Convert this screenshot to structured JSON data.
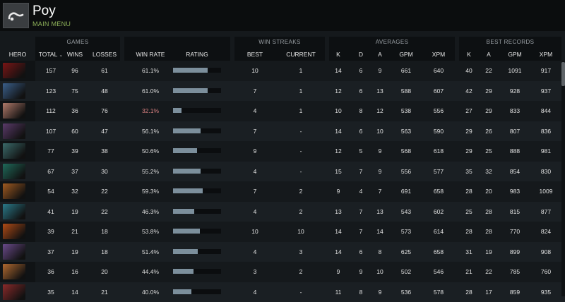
{
  "header": {
    "player_name": "Poy",
    "main_menu_label": "MAIN MENU",
    "logo_icon": "dota-logo-icon"
  },
  "groups": {
    "games": "GAMES",
    "win_streaks": "WIN STREAKS",
    "averages": "AVERAGES",
    "best_records": "BEST RECORDS"
  },
  "columns": {
    "hero": "HERO",
    "total": "TOTAL",
    "wins": "WINS",
    "losses": "LOSSES",
    "win_rate": "WIN RATE",
    "rating": "RATING",
    "best": "BEST",
    "current": "CURRENT",
    "k": "K",
    "d": "D",
    "a": "A",
    "gpm": "GPM",
    "xpm": "XPM",
    "best_k": "K",
    "best_a": "A",
    "best_gpm": "GPM",
    "best_xpm": "XPM"
  },
  "colors": {
    "accent_green": "#8fb35a",
    "low_winrate": "#d98080",
    "rating_bar": "#7c8f9c"
  },
  "rows": [
    {
      "hero_icon": "hero-portrait-icon",
      "hero_color": "#7a1515",
      "total": "157",
      "wins": "96",
      "losses": "61",
      "win_rate": "61.1%",
      "rating": 0.72,
      "best": "10",
      "current": "1",
      "k": "14",
      "d": "6",
      "a": "9",
      "gpm": "661",
      "xpm": "640",
      "best_k": "40",
      "best_a": "22",
      "best_gpm": "1091",
      "best_xpm": "917"
    },
    {
      "hero_icon": "hero-portrait-icon",
      "hero_color": "#3a5f8a",
      "total": "123",
      "wins": "75",
      "losses": "48",
      "win_rate": "61.0%",
      "rating": 0.72,
      "best": "7",
      "current": "1",
      "k": "12",
      "d": "6",
      "a": "13",
      "gpm": "588",
      "xpm": "607",
      "best_k": "42",
      "best_a": "29",
      "best_gpm": "928",
      "best_xpm": "937"
    },
    {
      "hero_icon": "hero-portrait-icon",
      "hero_color": "#b07a6a",
      "total": "112",
      "wins": "36",
      "losses": "76",
      "win_rate": "32.1%",
      "rating": 0.17,
      "best": "4",
      "current": "1",
      "k": "10",
      "d": "8",
      "a": "12",
      "gpm": "538",
      "xpm": "556",
      "best_k": "27",
      "best_a": "29",
      "best_gpm": "833",
      "best_xpm": "844"
    },
    {
      "hero_icon": "hero-portrait-icon",
      "hero_color": "#5a3a6a",
      "total": "107",
      "wins": "60",
      "losses": "47",
      "win_rate": "56.1%",
      "rating": 0.58,
      "best": "7",
      "current": "-",
      "k": "14",
      "d": "6",
      "a": "10",
      "gpm": "563",
      "xpm": "590",
      "best_k": "29",
      "best_a": "26",
      "best_gpm": "807",
      "best_xpm": "836"
    },
    {
      "hero_icon": "hero-portrait-icon",
      "hero_color": "#3a6a6a",
      "total": "77",
      "wins": "39",
      "losses": "38",
      "win_rate": "50.6%",
      "rating": 0.5,
      "best": "9",
      "current": "-",
      "k": "12",
      "d": "5",
      "a": "9",
      "gpm": "568",
      "xpm": "618",
      "best_k": "29",
      "best_a": "25",
      "best_gpm": "888",
      "best_xpm": "981"
    },
    {
      "hero_icon": "hero-portrait-icon",
      "hero_color": "#1f6a5a",
      "total": "67",
      "wins": "37",
      "losses": "30",
      "win_rate": "55.2%",
      "rating": 0.58,
      "best": "4",
      "current": "-",
      "k": "15",
      "d": "7",
      "a": "9",
      "gpm": "556",
      "xpm": "577",
      "best_k": "35",
      "best_a": "32",
      "best_gpm": "854",
      "best_xpm": "830"
    },
    {
      "hero_icon": "hero-portrait-icon",
      "hero_color": "#a05a20",
      "total": "54",
      "wins": "32",
      "losses": "22",
      "win_rate": "59.3%",
      "rating": 0.62,
      "best": "7",
      "current": "2",
      "k": "9",
      "d": "4",
      "a": "7",
      "gpm": "691",
      "xpm": "658",
      "best_k": "28",
      "best_a": "20",
      "best_gpm": "983",
      "best_xpm": "1009"
    },
    {
      "hero_icon": "hero-portrait-icon",
      "hero_color": "#2a7a8a",
      "total": "41",
      "wins": "19",
      "losses": "22",
      "win_rate": "46.3%",
      "rating": 0.44,
      "best": "4",
      "current": "2",
      "k": "13",
      "d": "7",
      "a": "13",
      "gpm": "543",
      "xpm": "602",
      "best_k": "25",
      "best_a": "28",
      "best_gpm": "815",
      "best_xpm": "877"
    },
    {
      "hero_icon": "hero-portrait-icon",
      "hero_color": "#b04a15",
      "total": "39",
      "wins": "21",
      "losses": "18",
      "win_rate": "53.8%",
      "rating": 0.56,
      "best": "10",
      "current": "10",
      "k": "14",
      "d": "7",
      "a": "14",
      "gpm": "573",
      "xpm": "614",
      "best_k": "28",
      "best_a": "28",
      "best_gpm": "770",
      "best_xpm": "824"
    },
    {
      "hero_icon": "hero-portrait-icon",
      "hero_color": "#6a4a8a",
      "total": "37",
      "wins": "19",
      "losses": "18",
      "win_rate": "51.4%",
      "rating": 0.52,
      "best": "4",
      "current": "3",
      "k": "14",
      "d": "6",
      "a": "8",
      "gpm": "625",
      "xpm": "658",
      "best_k": "31",
      "best_a": "19",
      "best_gpm": "899",
      "best_xpm": "908"
    },
    {
      "hero_icon": "hero-portrait-icon",
      "hero_color": "#b06a30",
      "total": "36",
      "wins": "16",
      "losses": "20",
      "win_rate": "44.4%",
      "rating": 0.42,
      "best": "3",
      "current": "2",
      "k": "9",
      "d": "9",
      "a": "10",
      "gpm": "502",
      "xpm": "546",
      "best_k": "21",
      "best_a": "22",
      "best_gpm": "785",
      "best_xpm": "760"
    },
    {
      "hero_icon": "hero-portrait-icon",
      "hero_color": "#8a2a2a",
      "total": "35",
      "wins": "14",
      "losses": "21",
      "win_rate": "40.0%",
      "rating": 0.38,
      "best": "4",
      "current": "-",
      "k": "11",
      "d": "8",
      "a": "9",
      "gpm": "536",
      "xpm": "578",
      "best_k": "28",
      "best_a": "17",
      "best_gpm": "859",
      "best_xpm": "935"
    }
  ]
}
